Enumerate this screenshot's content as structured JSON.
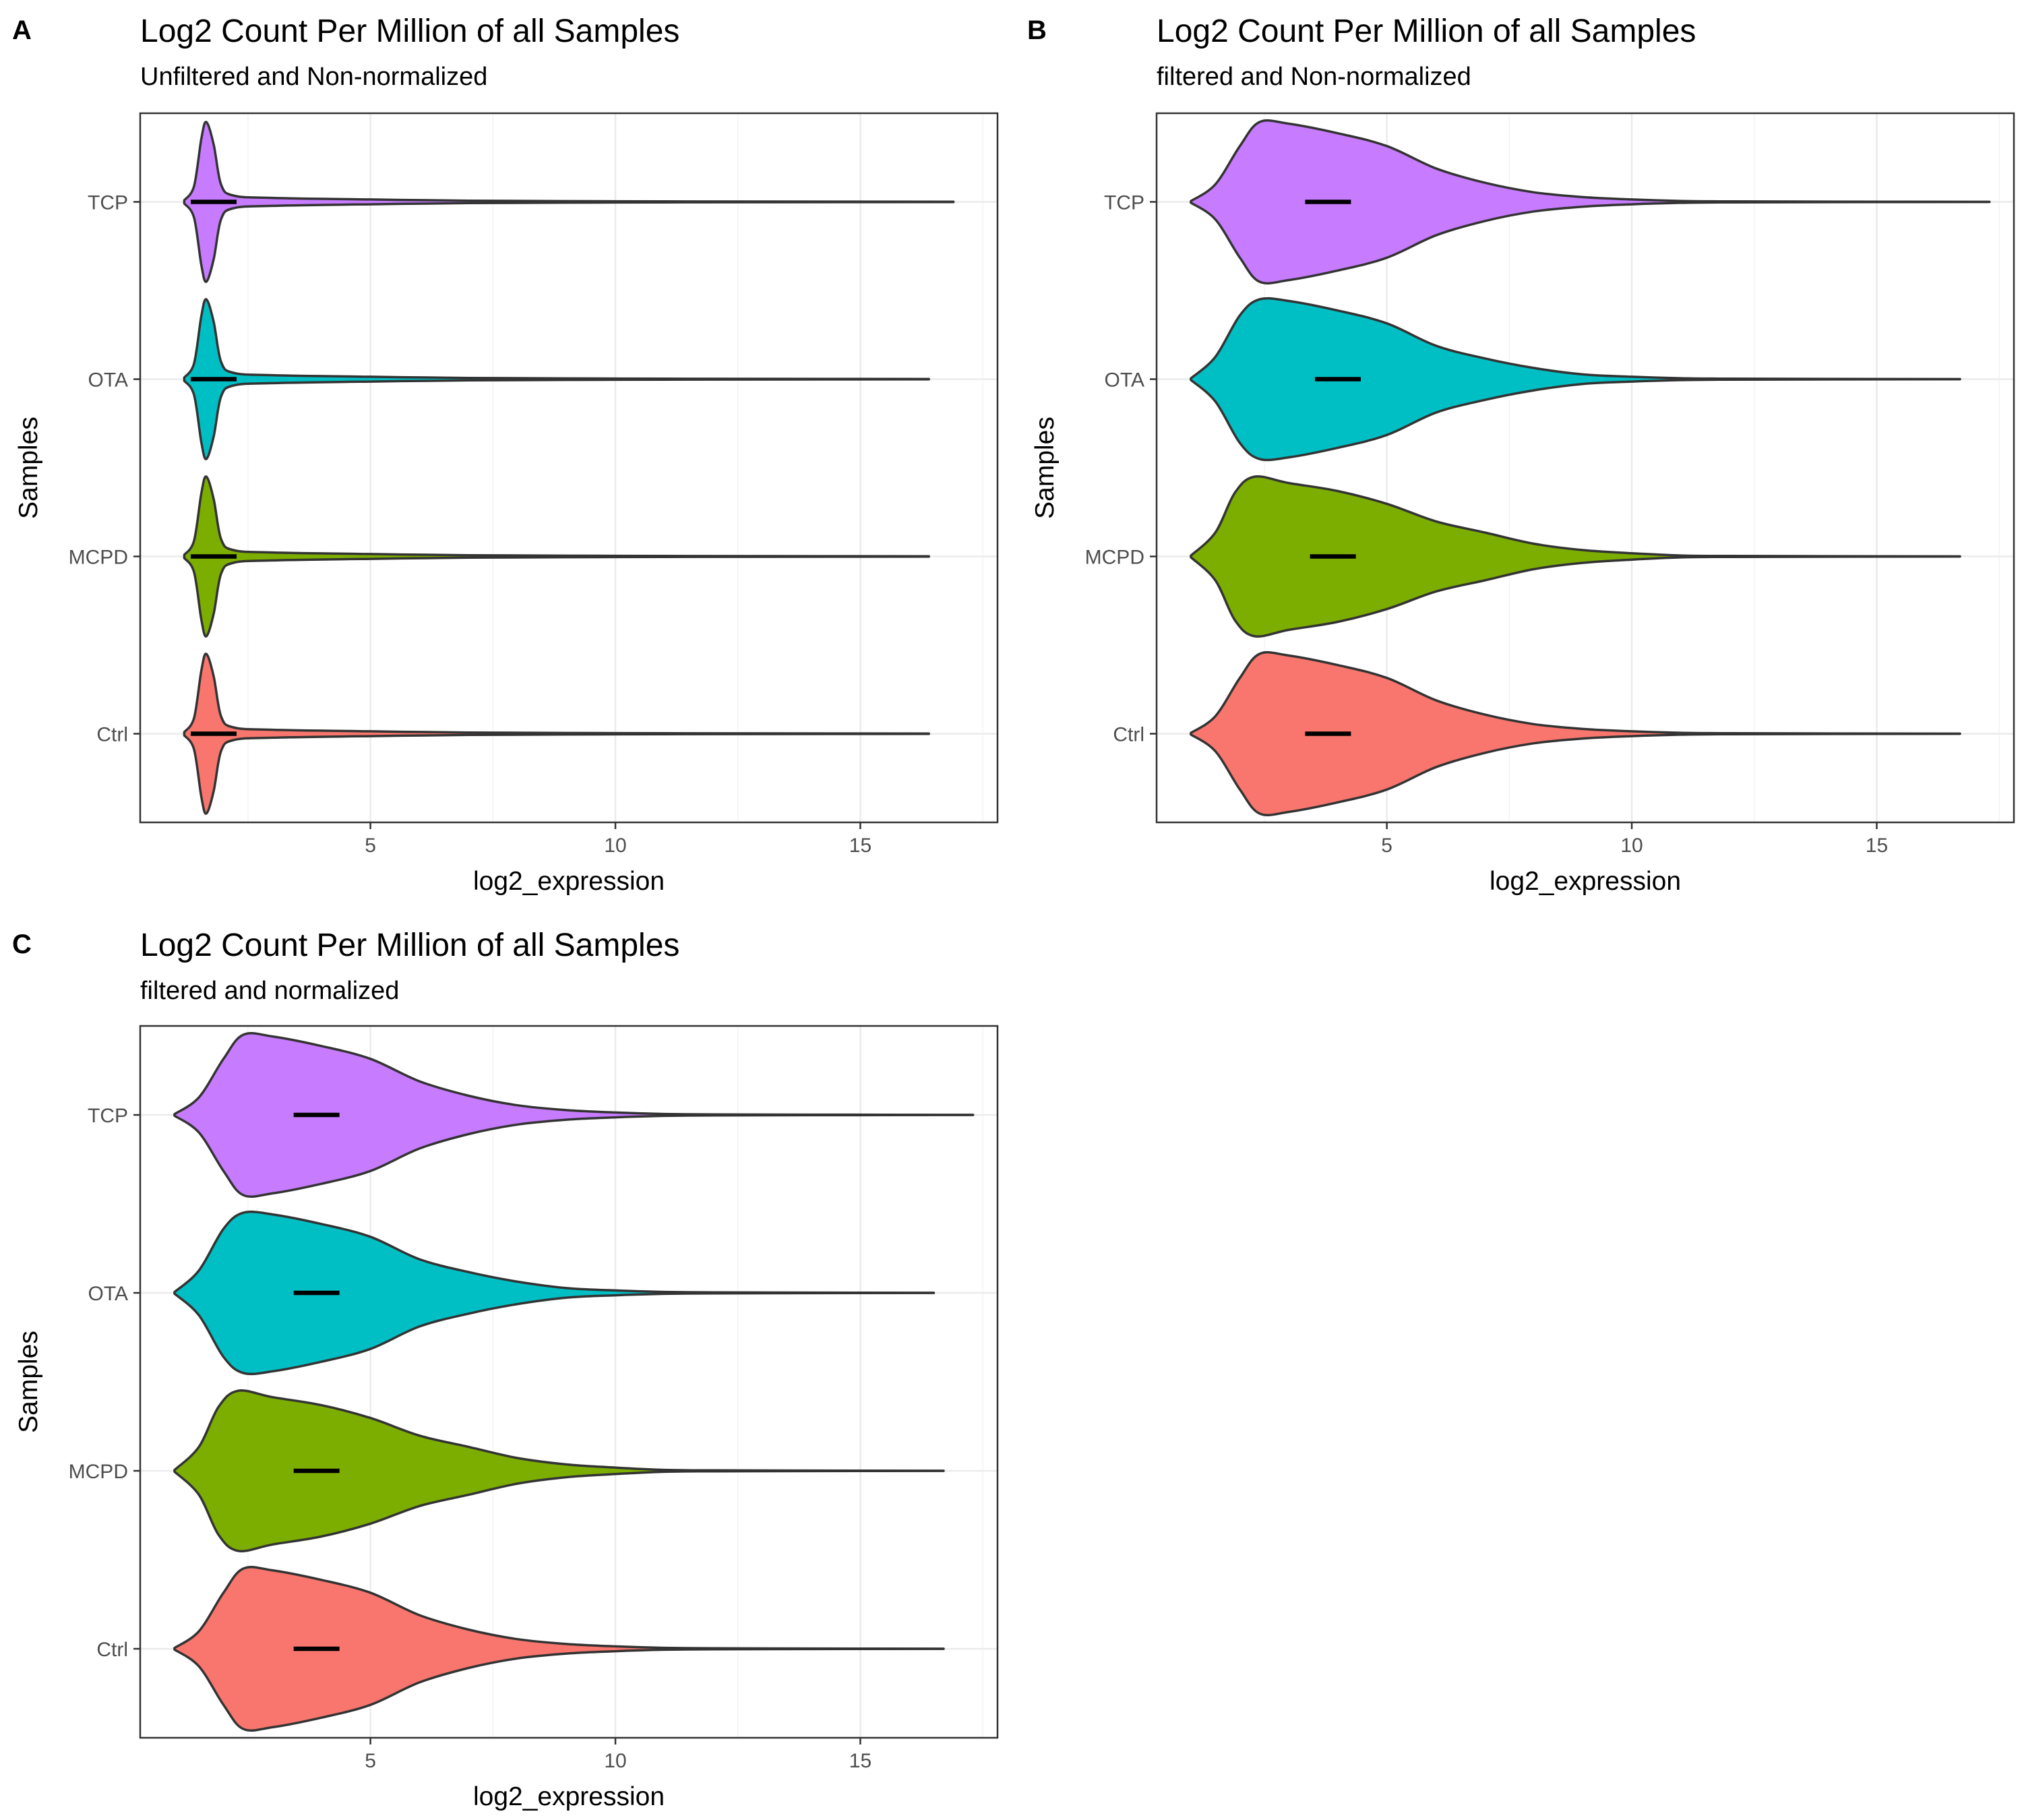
{
  "chart_data": [
    {
      "type": "violin",
      "panel": "A",
      "title": "Log2 Count Per Million of all Samples",
      "subtitle": "Unfiltered and Non-normalized",
      "xlabel": "log2_expression",
      "ylabel": "Samples",
      "xlim": [
        0.3,
        17.8
      ],
      "xticks": [
        5,
        10,
        15
      ],
      "categories": [
        "Ctrl",
        "MCPD",
        "OTA",
        "TCP"
      ],
      "grid": true,
      "legend": "none",
      "series": [
        {
          "category": "Ctrl",
          "color": "#F8766D",
          "min": 1.2,
          "max": 16.4,
          "median": 1.8,
          "profile": [
            [
              1.2,
              0.02
            ],
            [
              1.4,
              0.2
            ],
            [
              1.55,
              0.8
            ],
            [
              1.65,
              1.0
            ],
            [
              1.8,
              0.72
            ],
            [
              1.95,
              0.22
            ],
            [
              2.2,
              0.08
            ],
            [
              3,
              0.05
            ],
            [
              5,
              0.03
            ],
            [
              7,
              0.015
            ],
            [
              10,
              0.008
            ],
            [
              13,
              0.004
            ],
            [
              16.4,
              0.002
            ]
          ]
        },
        {
          "category": "MCPD",
          "color": "#7CAE00",
          "min": 1.2,
          "max": 16.4,
          "median": 1.8,
          "profile": [
            [
              1.2,
              0.02
            ],
            [
              1.4,
              0.2
            ],
            [
              1.55,
              0.8
            ],
            [
              1.65,
              1.0
            ],
            [
              1.8,
              0.72
            ],
            [
              1.95,
              0.22
            ],
            [
              2.2,
              0.08
            ],
            [
              3,
              0.05
            ],
            [
              5,
              0.03
            ],
            [
              7,
              0.015
            ],
            [
              10,
              0.008
            ],
            [
              13,
              0.004
            ],
            [
              16.4,
              0.002
            ]
          ]
        },
        {
          "category": "OTA",
          "color": "#00BFC4",
          "min": 1.2,
          "max": 16.4,
          "median": 1.8,
          "profile": [
            [
              1.2,
              0.02
            ],
            [
              1.4,
              0.2
            ],
            [
              1.55,
              0.8
            ],
            [
              1.65,
              1.0
            ],
            [
              1.8,
              0.72
            ],
            [
              1.95,
              0.22
            ],
            [
              2.2,
              0.08
            ],
            [
              3,
              0.05
            ],
            [
              5,
              0.03
            ],
            [
              7,
              0.015
            ],
            [
              10,
              0.008
            ],
            [
              13,
              0.004
            ],
            [
              16.4,
              0.002
            ]
          ]
        },
        {
          "category": "TCP",
          "color": "#C77CFF",
          "min": 1.2,
          "max": 16.9,
          "median": 1.8,
          "profile": [
            [
              1.2,
              0.02
            ],
            [
              1.4,
              0.2
            ],
            [
              1.55,
              0.8
            ],
            [
              1.65,
              1.0
            ],
            [
              1.8,
              0.72
            ],
            [
              1.95,
              0.22
            ],
            [
              2.2,
              0.08
            ],
            [
              3,
              0.05
            ],
            [
              5,
              0.03
            ],
            [
              7,
              0.015
            ],
            [
              10,
              0.008
            ],
            [
              13,
              0.004
            ],
            [
              16.9,
              0.002
            ]
          ]
        }
      ]
    },
    {
      "type": "violin",
      "panel": "B",
      "title": "Log2 Count Per Million of all Samples",
      "subtitle": "filtered and Non-normalized",
      "xlabel": "log2_expression",
      "ylabel": "Samples",
      "xlim": [
        0.3,
        17.8
      ],
      "xticks": [
        5,
        10,
        15
      ],
      "categories": [
        "Ctrl",
        "MCPD",
        "OTA",
        "TCP"
      ],
      "grid": true,
      "legend": "none",
      "series": [
        {
          "category": "Ctrl",
          "color": "#F8766D",
          "min": 1.0,
          "max": 16.7,
          "median": 3.8,
          "profile": [
            [
              1.0,
              0.01
            ],
            [
              1.5,
              0.22
            ],
            [
              2.0,
              0.7
            ],
            [
              2.4,
              1.0
            ],
            [
              3,
              0.98
            ],
            [
              4,
              0.86
            ],
            [
              5,
              0.7
            ],
            [
              6,
              0.42
            ],
            [
              7,
              0.24
            ],
            [
              8,
              0.12
            ],
            [
              9,
              0.06
            ],
            [
              10,
              0.03
            ],
            [
              11,
              0.012
            ],
            [
              12,
              0.006
            ],
            [
              14,
              0.003
            ],
            [
              16.7,
              0.001
            ]
          ]
        },
        {
          "category": "MCPD",
          "color": "#7CAE00",
          "min": 1.0,
          "max": 16.7,
          "median": 3.9,
          "profile": [
            [
              1.0,
              0.01
            ],
            [
              1.5,
              0.3
            ],
            [
              1.9,
              0.8
            ],
            [
              2.3,
              1.0
            ],
            [
              3,
              0.92
            ],
            [
              4,
              0.82
            ],
            [
              5,
              0.66
            ],
            [
              6,
              0.44
            ],
            [
              7,
              0.3
            ],
            [
              8,
              0.16
            ],
            [
              9,
              0.08
            ],
            [
              10,
              0.04
            ],
            [
              11,
              0.012
            ],
            [
              12,
              0.006
            ],
            [
              14,
              0.003
            ],
            [
              16.7,
              0.001
            ]
          ]
        },
        {
          "category": "OTA",
          "color": "#00BFC4",
          "min": 1.0,
          "max": 16.7,
          "median": 4.0,
          "profile": [
            [
              1.0,
              0.01
            ],
            [
              1.5,
              0.28
            ],
            [
              2.0,
              0.8
            ],
            [
              2.4,
              1.0
            ],
            [
              3,
              0.98
            ],
            [
              4,
              0.86
            ],
            [
              5,
              0.7
            ],
            [
              6,
              0.42
            ],
            [
              7,
              0.26
            ],
            [
              8,
              0.14
            ],
            [
              9,
              0.06
            ],
            [
              10,
              0.03
            ],
            [
              11,
              0.012
            ],
            [
              12,
              0.006
            ],
            [
              14,
              0.003
            ],
            [
              16.7,
              0.001
            ]
          ]
        },
        {
          "category": "TCP",
          "color": "#C77CFF",
          "min": 1.0,
          "max": 17.3,
          "median": 3.8,
          "profile": [
            [
              1.0,
              0.01
            ],
            [
              1.5,
              0.22
            ],
            [
              2.0,
              0.7
            ],
            [
              2.4,
              1.0
            ],
            [
              3,
              0.98
            ],
            [
              4,
              0.86
            ],
            [
              5,
              0.7
            ],
            [
              6,
              0.42
            ],
            [
              7,
              0.24
            ],
            [
              8,
              0.12
            ],
            [
              9,
              0.06
            ],
            [
              10,
              0.03
            ],
            [
              11,
              0.012
            ],
            [
              12,
              0.006
            ],
            [
              14,
              0.003
            ],
            [
              17.3,
              0.001
            ]
          ]
        }
      ]
    },
    {
      "type": "violin",
      "panel": "C",
      "title": "Log2 Count Per Million of all Samples",
      "subtitle": "filtered and normalized",
      "xlabel": "log2_expression",
      "ylabel": "Samples",
      "xlim": [
        0.3,
        17.8
      ],
      "xticks": [
        5,
        10,
        15
      ],
      "categories": [
        "Ctrl",
        "MCPD",
        "OTA",
        "TCP"
      ],
      "grid": true,
      "legend": "none",
      "series": [
        {
          "category": "Ctrl",
          "color": "#F8766D",
          "min": 1.0,
          "max": 16.7,
          "median": 3.9,
          "profile": [
            [
              1.0,
              0.01
            ],
            [
              1.5,
              0.22
            ],
            [
              2.0,
              0.7
            ],
            [
              2.4,
              1.0
            ],
            [
              3,
              0.98
            ],
            [
              4,
              0.86
            ],
            [
              5,
              0.7
            ],
            [
              6,
              0.42
            ],
            [
              7,
              0.24
            ],
            [
              8,
              0.12
            ],
            [
              9,
              0.06
            ],
            [
              10,
              0.03
            ],
            [
              11,
              0.012
            ],
            [
              12,
              0.006
            ],
            [
              14,
              0.003
            ],
            [
              16.7,
              0.001
            ]
          ]
        },
        {
          "category": "MCPD",
          "color": "#7CAE00",
          "min": 1.0,
          "max": 16.7,
          "median": 3.9,
          "profile": [
            [
              1.0,
              0.01
            ],
            [
              1.5,
              0.3
            ],
            [
              1.9,
              0.8
            ],
            [
              2.3,
              1.0
            ],
            [
              3,
              0.92
            ],
            [
              4,
              0.82
            ],
            [
              5,
              0.66
            ],
            [
              6,
              0.44
            ],
            [
              7,
              0.3
            ],
            [
              8,
              0.16
            ],
            [
              9,
              0.08
            ],
            [
              10,
              0.04
            ],
            [
              11,
              0.012
            ],
            [
              12,
              0.006
            ],
            [
              14,
              0.003
            ],
            [
              16.7,
              0.001
            ]
          ]
        },
        {
          "category": "OTA",
          "color": "#00BFC4",
          "min": 1.0,
          "max": 16.5,
          "median": 3.9,
          "profile": [
            [
              1.0,
              0.01
            ],
            [
              1.5,
              0.28
            ],
            [
              2.0,
              0.8
            ],
            [
              2.4,
              1.0
            ],
            [
              3,
              0.98
            ],
            [
              4,
              0.86
            ],
            [
              5,
              0.7
            ],
            [
              6,
              0.42
            ],
            [
              7,
              0.26
            ],
            [
              8,
              0.14
            ],
            [
              9,
              0.06
            ],
            [
              10,
              0.03
            ],
            [
              11,
              0.012
            ],
            [
              12,
              0.006
            ],
            [
              14,
              0.003
            ],
            [
              16.5,
              0.001
            ]
          ]
        },
        {
          "category": "TCP",
          "color": "#C77CFF",
          "min": 1.0,
          "max": 17.3,
          "median": 3.9,
          "profile": [
            [
              1.0,
              0.01
            ],
            [
              1.5,
              0.22
            ],
            [
              2.0,
              0.7
            ],
            [
              2.4,
              1.0
            ],
            [
              3,
              0.98
            ],
            [
              4,
              0.86
            ],
            [
              5,
              0.7
            ],
            [
              6,
              0.42
            ],
            [
              7,
              0.24
            ],
            [
              8,
              0.12
            ],
            [
              9,
              0.06
            ],
            [
              10,
              0.03
            ],
            [
              11,
              0.012
            ],
            [
              12,
              0.006
            ],
            [
              14,
              0.003
            ],
            [
              17.3,
              0.001
            ]
          ]
        }
      ]
    }
  ]
}
